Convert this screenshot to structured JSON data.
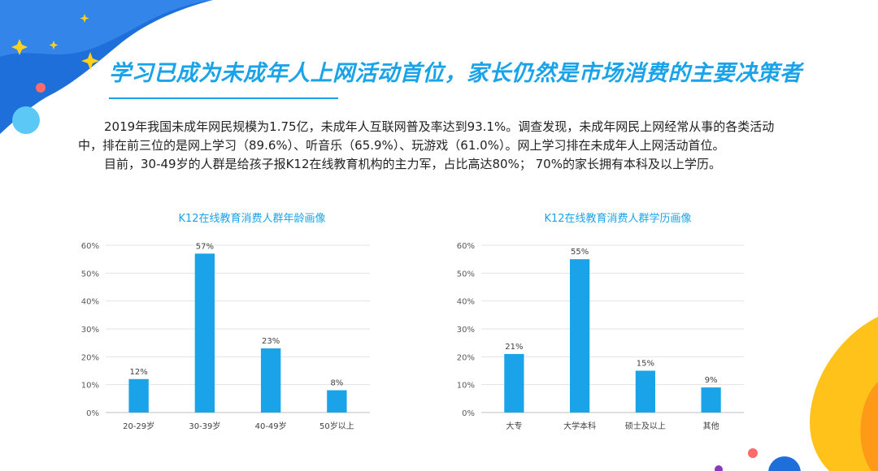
{
  "title": "学习已成为未成年人上网活动首位，家长仍然是市场消费的主要决策者",
  "paragraphs": [
    "2019年我国未成年网民规模为1.75亿，未成年人互联网普及率达到93.1%。调查发现，未成年网民上网经常从事的各类活动中，排在前三位的是网上学习（89.6%）、听音乐（65.9%）、玩游戏（61.0%）。网上学习排在未成年人上网活动首位。",
    "目前，30-49岁的人群是给孩子报K12在线教育机构的主力军，占比高达80%； 70%的家长拥有本科及以上学历。"
  ],
  "colors": {
    "accent": "#1aa3e8",
    "bar": "#1aa3e8",
    "deco_blue": "#1e6fd9",
    "deco_yellow": "#ffc21a"
  },
  "chart_data": [
    {
      "type": "bar",
      "title": "K12在线教育消费人群年龄画像",
      "categories": [
        "20-29岁",
        "30-39岁",
        "40-49岁",
        "50岁以上"
      ],
      "values": [
        12,
        57,
        23,
        8
      ],
      "value_labels": [
        "12%",
        "57%",
        "23%",
        "8%"
      ],
      "ylim": [
        0,
        60
      ],
      "yticks": [
        "0%",
        "10%",
        "20%",
        "30%",
        "40%",
        "50%",
        "60%"
      ],
      "grid": true
    },
    {
      "type": "bar",
      "title": "K12在线教育消费人群学历画像",
      "categories": [
        "大专",
        "大学本科",
        "硕士及以上",
        "其他"
      ],
      "values": [
        21,
        55,
        15,
        9
      ],
      "value_labels": [
        "21%",
        "55%",
        "15%",
        "9%"
      ],
      "ylim": [
        0,
        60
      ],
      "yticks": [
        "0%",
        "10%",
        "20%",
        "30%",
        "40%",
        "50%",
        "60%"
      ],
      "grid": true
    }
  ]
}
